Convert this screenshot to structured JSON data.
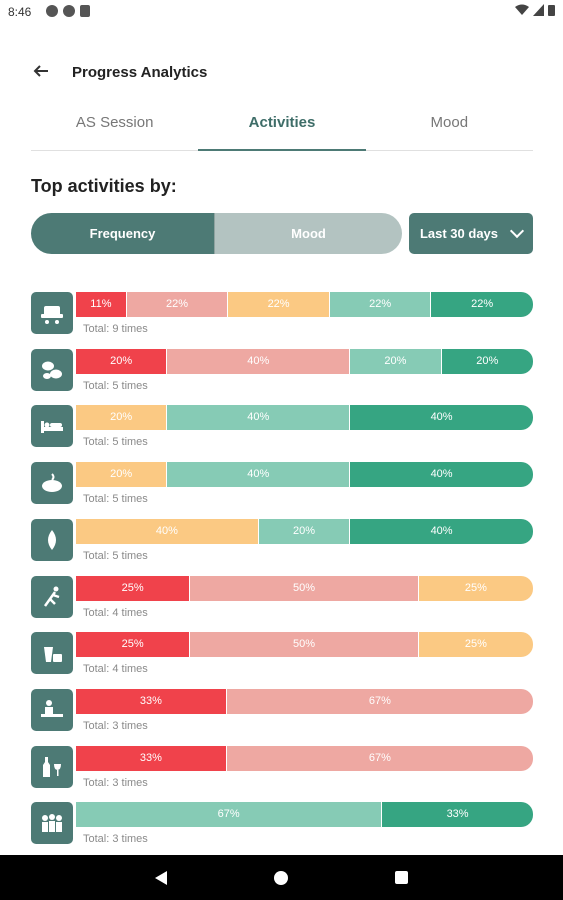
{
  "status": {
    "time": "8:46"
  },
  "appbar": {
    "title": "Progress Analytics"
  },
  "tabs": [
    {
      "label": "AS Session",
      "active": false
    },
    {
      "label": "Activities",
      "active": true
    },
    {
      "label": "Mood",
      "active": false
    }
  ],
  "section_title": "Top activities by:",
  "toggle": {
    "frequency": "Frequency",
    "mood": "Mood",
    "selected": "Frequency"
  },
  "period": {
    "label": "Last 30 days"
  },
  "colors": {
    "very_bad": "#f0424b",
    "bad": "#eea8a2",
    "neutral": "#fbc983",
    "good": "#86cbb5",
    "very_good": "#36a582",
    "icon_bg": "#4d7a75"
  },
  "activities": [
    {
      "icon": "workplace-icon",
      "total": "Total: 9 times",
      "segments": [
        {
          "label": "11%",
          "value": 11,
          "color": "very_bad"
        },
        {
          "label": "22%",
          "value": 22,
          "color": "bad"
        },
        {
          "label": "22%",
          "value": 22,
          "color": "neutral"
        },
        {
          "label": "22%",
          "value": 22,
          "color": "good"
        },
        {
          "label": "22%",
          "value": 22,
          "color": "very_good"
        }
      ]
    },
    {
      "icon": "coffee-beans-icon",
      "total": "Total: 5 times",
      "segments": [
        {
          "label": "20%",
          "value": 20,
          "color": "very_bad"
        },
        {
          "label": "40%",
          "value": 40,
          "color": "bad"
        },
        {
          "label": "20%",
          "value": 20,
          "color": "good"
        },
        {
          "label": "20%",
          "value": 20,
          "color": "very_good"
        }
      ]
    },
    {
      "icon": "bed-icon",
      "total": "Total: 5 times",
      "segments": [
        {
          "label": "20%",
          "value": 20,
          "color": "neutral"
        },
        {
          "label": "40%",
          "value": 40,
          "color": "good"
        },
        {
          "label": "40%",
          "value": 40,
          "color": "very_good"
        }
      ]
    },
    {
      "icon": "food-icon",
      "total": "Total: 5 times",
      "segments": [
        {
          "label": "20%",
          "value": 20,
          "color": "neutral"
        },
        {
          "label": "40%",
          "value": 40,
          "color": "good"
        },
        {
          "label": "40%",
          "value": 40,
          "color": "very_good"
        }
      ]
    },
    {
      "icon": "water-drop-icon",
      "total": "Total: 5 times",
      "segments": [
        {
          "label": "40%",
          "value": 40,
          "color": "neutral"
        },
        {
          "label": "20%",
          "value": 20,
          "color": "good"
        },
        {
          "label": "40%",
          "value": 40,
          "color": "very_good"
        }
      ]
    },
    {
      "icon": "exercise-icon",
      "total": "Total: 4 times",
      "segments": [
        {
          "label": "25%",
          "value": 25,
          "color": "very_bad"
        },
        {
          "label": "50%",
          "value": 50,
          "color": "bad"
        },
        {
          "label": "25%",
          "value": 25,
          "color": "neutral"
        }
      ]
    },
    {
      "icon": "drink-snack-icon",
      "total": "Total: 4 times",
      "segments": [
        {
          "label": "25%",
          "value": 25,
          "color": "very_bad"
        },
        {
          "label": "50%",
          "value": 50,
          "color": "bad"
        },
        {
          "label": "25%",
          "value": 25,
          "color": "neutral"
        }
      ]
    },
    {
      "icon": "meal-icon",
      "total": "Total: 3 times",
      "segments": [
        {
          "label": "33%",
          "value": 33,
          "color": "very_bad"
        },
        {
          "label": "67%",
          "value": 67,
          "color": "bad"
        }
      ]
    },
    {
      "icon": "alcohol-icon",
      "total": "Total: 3 times",
      "segments": [
        {
          "label": "33%",
          "value": 33,
          "color": "very_bad"
        },
        {
          "label": "67%",
          "value": 67,
          "color": "bad"
        }
      ]
    },
    {
      "icon": "friends-icon",
      "total": "Total: 3 times",
      "segments": [
        {
          "label": "67%",
          "value": 67,
          "color": "good"
        },
        {
          "label": "33%",
          "value": 33,
          "color": "very_good"
        }
      ]
    }
  ]
}
